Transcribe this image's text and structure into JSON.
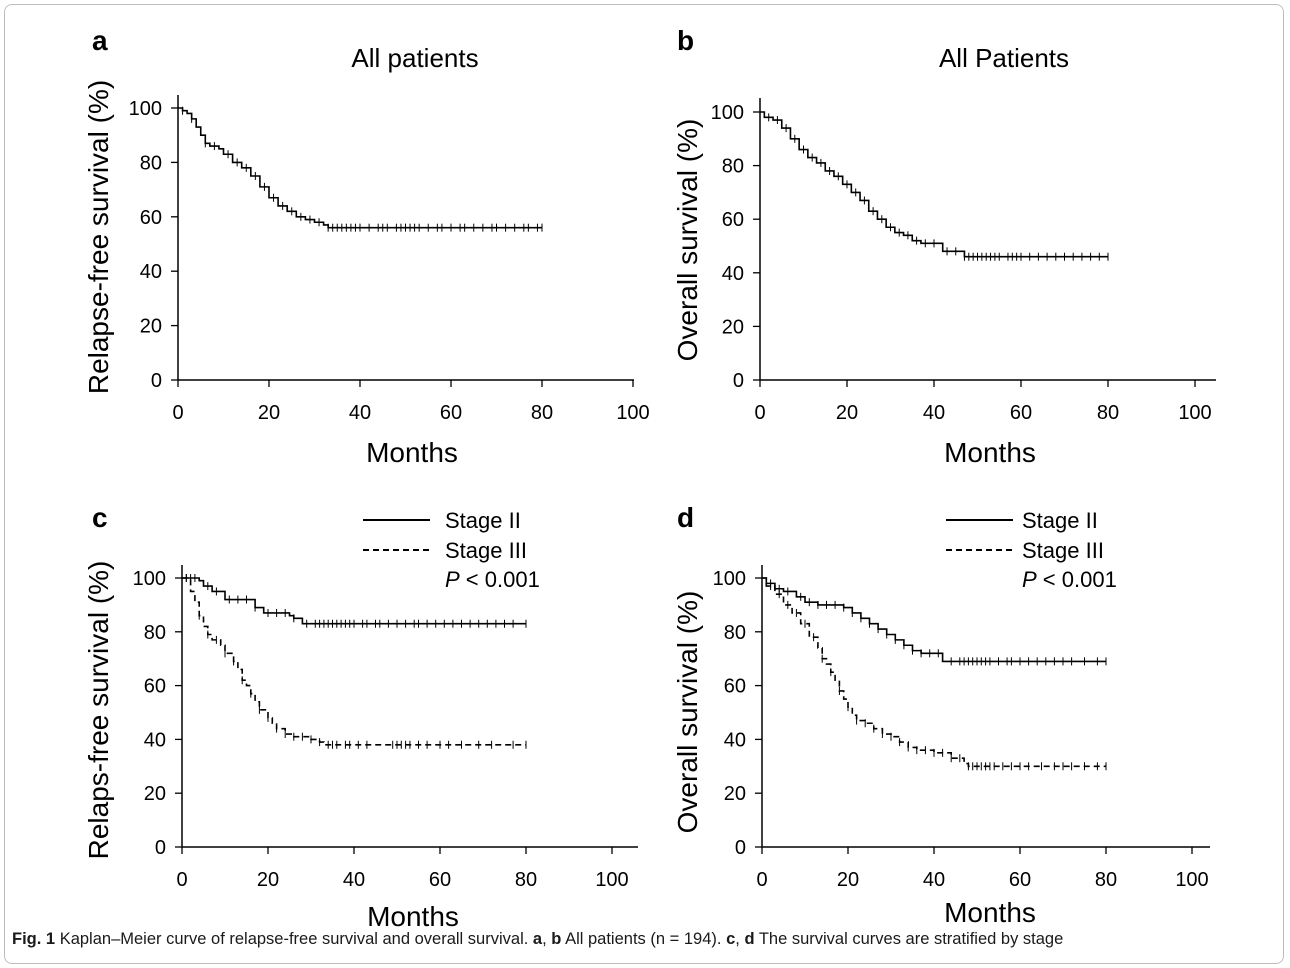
{
  "figure": {
    "caption": {
      "label": "Fig. 1",
      "text_1": "Kaplan–Meier curve of relapse-free survival and overall survival.",
      "ref_a": "a",
      "sep_1": ",",
      "ref_b": "b",
      "text_2": "All patients (n = 194).",
      "ref_c": "c",
      "sep_2": ",",
      "ref_d": "d",
      "text_3": "The survival curves are stratified by stage"
    }
  },
  "chart_data": [
    {
      "panel": "a",
      "type": "line",
      "title": "All patients",
      "xlabel": "Months",
      "ylabel": "Relapse-free survival (%)",
      "xlim": [
        0,
        100
      ],
      "ylim": [
        0,
        100
      ],
      "xticks": [
        0,
        20,
        40,
        60,
        80,
        100
      ],
      "yticks": [
        0,
        20,
        40,
        60,
        80,
        100
      ],
      "grid": false,
      "series": [
        {
          "style": "solid",
          "step": [
            [
              0,
              100
            ],
            [
              1,
              99
            ],
            [
              2,
              98
            ],
            [
              3,
              96
            ],
            [
              4,
              93
            ],
            [
              5,
              90
            ],
            [
              6,
              87
            ],
            [
              7,
              86
            ],
            [
              9,
              85
            ],
            [
              10,
              83
            ],
            [
              12,
              80
            ],
            [
              14,
              78
            ],
            [
              16,
              75
            ],
            [
              18,
              71
            ],
            [
              20,
              67
            ],
            [
              22,
              64
            ],
            [
              24,
              62
            ],
            [
              26,
              60
            ],
            [
              28,
              59
            ],
            [
              30,
              58
            ],
            [
              32,
              57
            ],
            [
              33,
              56
            ],
            [
              80,
              56
            ]
          ],
          "censor_x": [
            1,
            3,
            6,
            8,
            11,
            13,
            15,
            17,
            19,
            21,
            23,
            25,
            27,
            29,
            31,
            33,
            34,
            35,
            36,
            37,
            38,
            39,
            40,
            42,
            44,
            45,
            46,
            48,
            49,
            50,
            51,
            52,
            53,
            55,
            57,
            58,
            60,
            62,
            63,
            65,
            67,
            69,
            70,
            72,
            74,
            76,
            77,
            79,
            80
          ]
        }
      ]
    },
    {
      "panel": "b",
      "type": "line",
      "title": "All Patients",
      "xlabel": "Months",
      "ylabel": "Overall survival (%)",
      "xlim": [
        0,
        100
      ],
      "ylim": [
        0,
        100
      ],
      "xticks": [
        0,
        20,
        40,
        60,
        80,
        100
      ],
      "yticks": [
        0,
        20,
        40,
        60,
        80,
        100
      ],
      "grid": false,
      "series": [
        {
          "style": "solid",
          "step": [
            [
              0,
              100
            ],
            [
              1,
              98
            ],
            [
              3,
              97
            ],
            [
              5,
              94
            ],
            [
              7,
              90
            ],
            [
              9,
              86
            ],
            [
              11,
              83
            ],
            [
              13,
              81
            ],
            [
              15,
              78
            ],
            [
              17,
              76
            ],
            [
              19,
              73
            ],
            [
              21,
              70
            ],
            [
              23,
              67
            ],
            [
              25,
              63
            ],
            [
              27,
              60
            ],
            [
              29,
              57
            ],
            [
              31,
              55
            ],
            [
              33,
              54
            ],
            [
              35,
              52
            ],
            [
              37,
              51
            ],
            [
              42,
              48
            ],
            [
              47,
              46
            ],
            [
              80,
              46
            ]
          ],
          "censor_x": [
            2,
            4,
            6,
            8,
            10,
            12,
            14,
            16,
            18,
            20,
            22,
            24,
            26,
            28,
            30,
            32,
            34,
            36,
            38,
            40,
            43,
            45,
            47,
            48,
            49,
            50,
            51,
            52,
            53,
            54,
            55,
            57,
            58,
            59,
            60,
            62,
            64,
            66,
            68,
            70,
            72,
            74,
            76,
            78,
            80
          ]
        }
      ]
    },
    {
      "panel": "c",
      "type": "line",
      "title": "",
      "xlabel": "Months",
      "ylabel": "Relaps-free survival (%)",
      "xlim": [
        0,
        100
      ],
      "ylim": [
        0,
        100
      ],
      "xticks": [
        0,
        20,
        40,
        60,
        80,
        100
      ],
      "yticks": [
        0,
        20,
        40,
        60,
        80,
        100
      ],
      "grid": false,
      "legend_position": "top-right",
      "annotation": {
        "italic": "P",
        "rest": " < 0.001"
      },
      "series": [
        {
          "name": "Stage II",
          "style": "solid",
          "step": [
            [
              0,
              100
            ],
            [
              4,
              99
            ],
            [
              5,
              97
            ],
            [
              7,
              95
            ],
            [
              10,
              92
            ],
            [
              17,
              89
            ],
            [
              19,
              87
            ],
            [
              25,
              86
            ],
            [
              26,
              85
            ],
            [
              28,
              83
            ],
            [
              80,
              83
            ]
          ],
          "censor_x": [
            1,
            2,
            3,
            6,
            8,
            11,
            13,
            15,
            17,
            20,
            22,
            24,
            26,
            29,
            31,
            32,
            33,
            34,
            35,
            36,
            37,
            38,
            39,
            40,
            42,
            43,
            45,
            46,
            48,
            50,
            52,
            54,
            55,
            57,
            59,
            61,
            63,
            65,
            67,
            69,
            71,
            73,
            75,
            77,
            80
          ]
        },
        {
          "name": "Stage III",
          "style": "dashed",
          "step": [
            [
              0,
              100
            ],
            [
              2,
              95
            ],
            [
              3,
              91
            ],
            [
              4,
              86
            ],
            [
              5,
              82
            ],
            [
              6,
              79
            ],
            [
              7,
              77
            ],
            [
              9,
              75
            ],
            [
              10,
              72
            ],
            [
              12,
              69
            ],
            [
              13,
              66
            ],
            [
              14,
              62
            ],
            [
              15,
              60
            ],
            [
              16,
              57
            ],
            [
              17,
              54
            ],
            [
              18,
              51
            ],
            [
              20,
              48
            ],
            [
              21,
              46
            ],
            [
              22,
              44
            ],
            [
              24,
              42
            ],
            [
              26,
              41
            ],
            [
              30,
              40
            ],
            [
              32,
              39
            ],
            [
              33,
              38
            ],
            [
              80,
              38
            ]
          ],
          "censor_x": [
            1,
            4,
            6,
            8,
            10,
            12,
            14,
            16,
            18,
            20,
            22,
            24,
            26,
            28,
            30,
            32,
            34,
            35,
            36,
            38,
            39,
            41,
            43,
            49,
            50,
            51,
            52,
            53,
            55,
            57,
            60,
            62,
            65,
            69,
            72,
            77,
            80
          ]
        }
      ]
    },
    {
      "panel": "d",
      "type": "line",
      "title": "",
      "xlabel": "Months",
      "ylabel": "Overall survival (%)",
      "xlim": [
        0,
        100
      ],
      "ylim": [
        0,
        100
      ],
      "xticks": [
        0,
        20,
        40,
        60,
        80,
        100
      ],
      "yticks": [
        0,
        20,
        40,
        60,
        80,
        100
      ],
      "grid": false,
      "legend_position": "top-right",
      "annotation": {
        "italic": "P",
        "rest": " < 0.001"
      },
      "series": [
        {
          "name": "Stage II",
          "style": "solid",
          "step": [
            [
              0,
              100
            ],
            [
              1,
              98
            ],
            [
              3,
              96
            ],
            [
              5,
              95
            ],
            [
              8,
              93
            ],
            [
              10,
              91
            ],
            [
              13,
              90
            ],
            [
              19,
              89
            ],
            [
              21,
              87
            ],
            [
              23,
              85
            ],
            [
              25,
              83
            ],
            [
              27,
              81
            ],
            [
              29,
              79
            ],
            [
              31,
              77
            ],
            [
              33,
              75
            ],
            [
              35,
              73
            ],
            [
              37,
              72
            ],
            [
              42,
              69
            ],
            [
              80,
              69
            ]
          ],
          "censor_x": [
            2,
            4,
            6,
            9,
            11,
            13,
            15,
            17,
            19,
            21,
            23,
            25,
            27,
            29,
            31,
            33,
            35,
            37,
            39,
            41,
            44,
            46,
            47,
            48,
            49,
            50,
            51,
            52,
            53,
            55,
            57,
            58,
            60,
            62,
            64,
            66,
            68,
            70,
            72,
            75,
            78,
            80
          ]
        },
        {
          "name": "Stage III",
          "style": "dashed",
          "step": [
            [
              0,
              100
            ],
            [
              1,
              97
            ],
            [
              3,
              94
            ],
            [
              5,
              90
            ],
            [
              7,
              87
            ],
            [
              9,
              83
            ],
            [
              11,
              78
            ],
            [
              13,
              74
            ],
            [
              14,
              70
            ],
            [
              15,
              68
            ],
            [
              16,
              65
            ],
            [
              17,
              62
            ],
            [
              18,
              58
            ],
            [
              19,
              55
            ],
            [
              20,
              52
            ],
            [
              21,
              49
            ],
            [
              22,
              47
            ],
            [
              24,
              46
            ],
            [
              26,
              44
            ],
            [
              28,
              42
            ],
            [
              30,
              41
            ],
            [
              32,
              39
            ],
            [
              34,
              37
            ],
            [
              36,
              36
            ],
            [
              40,
              35
            ],
            [
              44,
              33
            ],
            [
              47,
              31
            ],
            [
              48,
              30
            ],
            [
              80,
              30
            ]
          ],
          "censor_x": [
            2,
            4,
            6,
            8,
            10,
            12,
            14,
            16,
            18,
            20,
            22,
            24,
            26,
            28,
            30,
            32,
            34,
            36,
            38,
            40,
            42,
            44,
            46,
            48,
            49,
            50,
            51,
            52,
            53,
            54,
            56,
            58,
            60,
            62,
            65,
            68,
            70,
            72,
            75,
            78,
            80
          ]
        }
      ]
    }
  ]
}
